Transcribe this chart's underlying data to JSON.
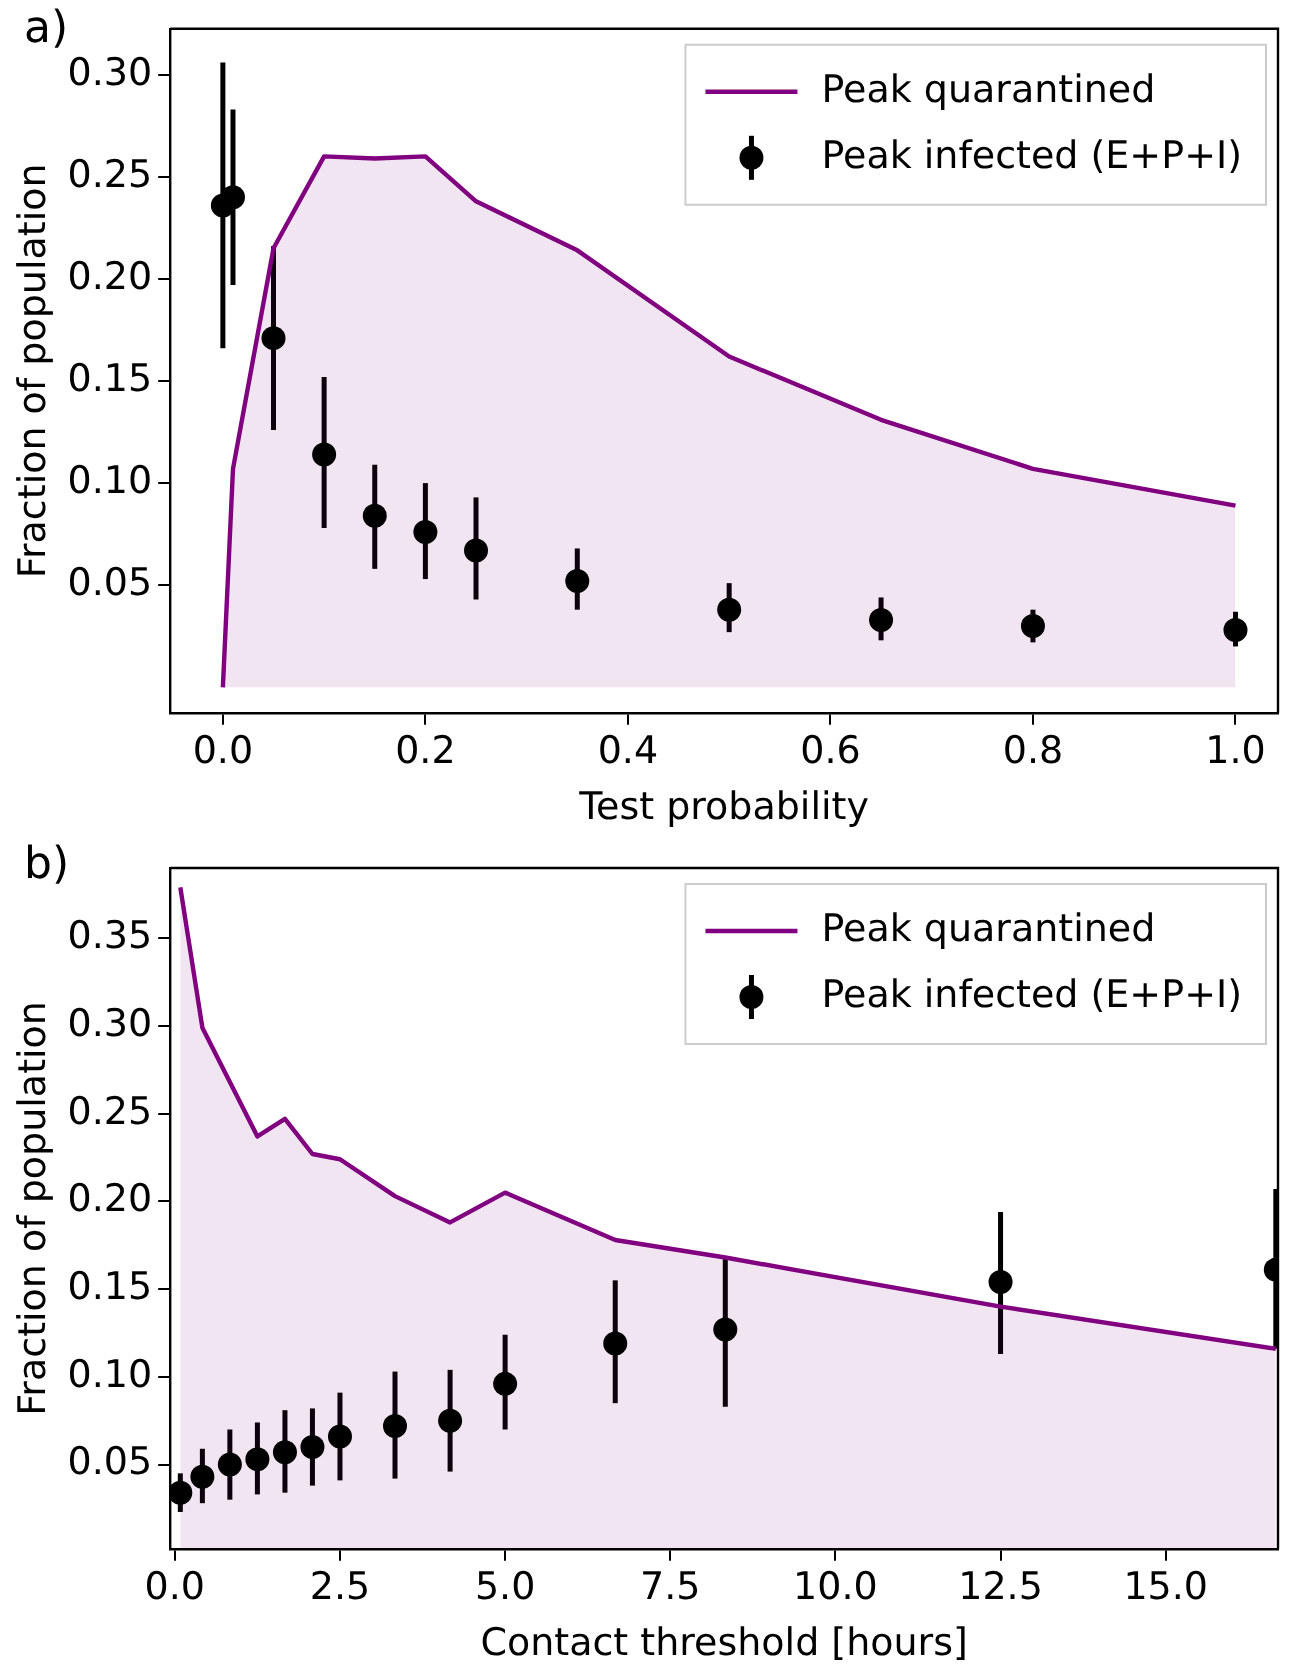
{
  "chart_data": [
    {
      "type": "scatter",
      "title": "a)",
      "xlabel": "Test probability",
      "ylabel": "Fraction of population",
      "xlim": [
        -0.052,
        1.042
      ],
      "ylim": [
        -0.0125,
        0.3225
      ],
      "xticks": [
        {
          "value": 0,
          "label": "0.0"
        },
        {
          "value": 0.2,
          "label": "0.2"
        },
        {
          "value": 0.4,
          "label": "0.4"
        },
        {
          "value": 0.6,
          "label": "0.6"
        },
        {
          "value": 0.8,
          "label": "0.8"
        },
        {
          "value": 1,
          "label": "1.0"
        }
      ],
      "yticks": [
        {
          "value": 0.05,
          "label": "0.05"
        },
        {
          "value": 0.1,
          "label": "0.10"
        },
        {
          "value": 0.15,
          "label": "0.15"
        },
        {
          "value": 0.2,
          "label": "0.20"
        },
        {
          "value": 0.25,
          "label": "0.25"
        },
        {
          "value": 0.3,
          "label": "0.30"
        }
      ],
      "grid": false,
      "legend": "top right",
      "series": [
        {
          "type": "area",
          "name": "Peak quarantined",
          "color": "#800080",
          "marker": "none",
          "x": [
            0,
            0.01,
            0.05,
            0.1,
            0.15,
            0.2,
            0.25,
            0.35,
            0.5,
            0.65,
            0.8,
            1.0
          ],
          "values": [
            0,
            0.107,
            0.215,
            0.26,
            0.259,
            0.26,
            0.238,
            0.214,
            0.162,
            0.131,
            0.107,
            0.089
          ]
        },
        {
          "name": "Peak infected (E+P+I)",
          "color": "#000000",
          "marker": "circle",
          "x": [
            0,
            0.01,
            0.05,
            0.1,
            0.15,
            0.2,
            0.25,
            0.35,
            0.5,
            0.65,
            0.8,
            1.0
          ],
          "values": [
            0.236,
            0.24,
            0.171,
            0.114,
            0.084,
            0.076,
            0.067,
            0.052,
            0.038,
            0.033,
            0.03,
            0.028
          ],
          "errors": [
            [
              0.166,
              0.306
            ],
            [
              0.197,
              0.283
            ],
            [
              0.126,
              0.216
            ],
            [
              0.078,
              0.152
            ],
            [
              0.058,
              0.109
            ],
            [
              0.053,
              0.1
            ],
            [
              0.043,
              0.093
            ],
            [
              0.038,
              0.068
            ],
            [
              0.027,
              0.051
            ],
            [
              0.023,
              0.044
            ],
            [
              0.022,
              0.038
            ],
            [
              0.02,
              0.037
            ]
          ]
        }
      ]
    },
    {
      "type": "scatter",
      "title": "b)",
      "xlabel": "Contact threshold [hours]",
      "ylabel": "Fraction of population",
      "xlim": [
        -0.07,
        16.7
      ],
      "ylim": [
        0.002,
        0.39
      ],
      "xticks": [
        {
          "value": 0,
          "label": "0.0"
        },
        {
          "value": 2.5,
          "label": "2.5"
        },
        {
          "value": 5,
          "label": "5.0"
        },
        {
          "value": 7.5,
          "label": "7.5"
        },
        {
          "value": 10,
          "label": "10.0"
        },
        {
          "value": 12.5,
          "label": "12.5"
        },
        {
          "value": 15,
          "label": "15.0"
        }
      ],
      "yticks": [
        {
          "value": 0.05,
          "label": "0.05"
        },
        {
          "value": 0.1,
          "label": "0.10"
        },
        {
          "value": 0.15,
          "label": "0.15"
        },
        {
          "value": 0.2,
          "label": "0.20"
        },
        {
          "value": 0.25,
          "label": "0.25"
        },
        {
          "value": 0.3,
          "label": "0.30"
        },
        {
          "value": 0.35,
          "label": "0.35"
        }
      ],
      "grid": false,
      "legend": "top right",
      "series": [
        {
          "type": "area",
          "name": "Peak quarantined",
          "color": "#800080",
          "marker": "none",
          "x": [
            0.083,
            0.417,
            0.833,
            1.25,
            1.667,
            2.083,
            2.5,
            3.333,
            4.167,
            5.0,
            6.667,
            8.333,
            12.5,
            16.667
          ],
          "values": [
            0.379,
            0.299,
            0.268,
            0.237,
            0.247,
            0.227,
            0.224,
            0.203,
            0.188,
            0.205,
            0.178,
            0.168,
            0.14,
            0.116
          ]
        },
        {
          "name": "Peak infected (E+P+I)",
          "color": "#000000",
          "marker": "circle",
          "x": [
            0.083,
            0.417,
            0.833,
            1.25,
            1.667,
            2.083,
            2.5,
            3.333,
            4.167,
            5.0,
            6.667,
            8.333,
            12.5,
            16.667
          ],
          "values": [
            0.034,
            0.043,
            0.05,
            0.053,
            0.057,
            0.06,
            0.066,
            0.072,
            0.075,
            0.096,
            0.119,
            0.127,
            0.154,
            0.161
          ],
          "errors": [
            [
              0.023,
              0.045
            ],
            [
              0.028,
              0.059
            ],
            [
              0.03,
              0.07
            ],
            [
              0.033,
              0.074
            ],
            [
              0.034,
              0.081
            ],
            [
              0.038,
              0.082
            ],
            [
              0.041,
              0.091
            ],
            [
              0.042,
              0.103
            ],
            [
              0.046,
              0.104
            ],
            [
              0.07,
              0.124
            ],
            [
              0.085,
              0.155
            ],
            [
              0.083,
              0.168
            ],
            [
              0.113,
              0.194
            ],
            [
              0.116,
              0.207
            ]
          ]
        }
      ]
    }
  ]
}
